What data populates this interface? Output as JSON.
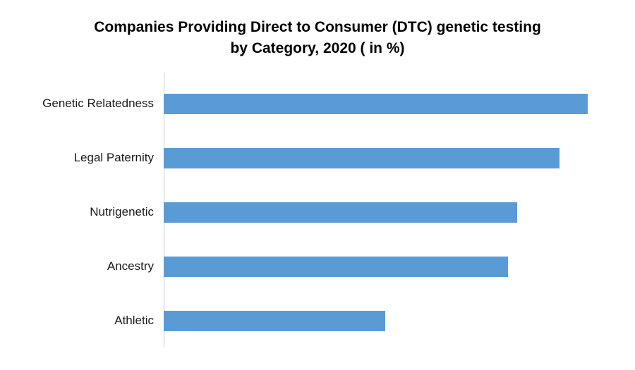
{
  "chart_data": {
    "type": "bar",
    "orientation": "horizontal",
    "title": "Companies Providing Direct to Consumer (DTC) genetic testing by Category, 2020 ( in %)",
    "categories": [
      "Genetic Relatedness",
      "Legal Paternity",
      "Nutrigenetic",
      "Ancestry",
      "Athletic"
    ],
    "values": [
      45,
      42,
      37.5,
      36.5,
      23.5
    ],
    "xlabel": "",
    "ylabel": "",
    "xlim": [
      0,
      50
    ],
    "grid": false,
    "legend": "none",
    "bar_color": "#5b9bd5",
    "axis_line_color": "#c9c9c9"
  }
}
